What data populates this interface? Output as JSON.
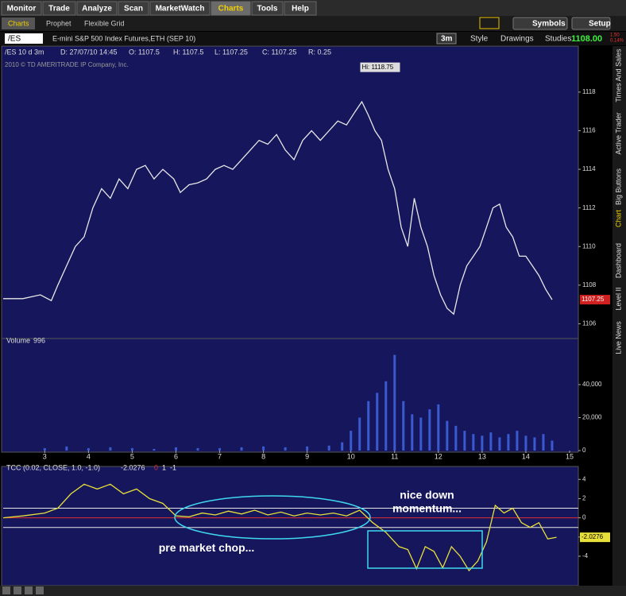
{
  "tabs": [
    "Monitor",
    "Trade",
    "Analyze",
    "Scan",
    "MarketWatch",
    "Charts",
    "Tools",
    "Help"
  ],
  "subtabs": [
    "Charts",
    "Prophet",
    "Flexible Grid"
  ],
  "toolbar": {
    "symbol": "/ES",
    "description": "E-mini S&P 500 Index Futures,ETH (SEP 10)",
    "period": "3m",
    "style": "Style",
    "drawings": "Drawings",
    "studies": "Studies",
    "last": "1108.00",
    "change": "1.50",
    "change_pct": "0.14%",
    "symbols": "Symbols",
    "setup": "Setup"
  },
  "info": [
    "/ES 10 d 3m",
    "D: 27/07/10 14:45",
    "O: 1107.5",
    "H: 1107.5",
    "L: 1107.25",
    "C: 1107.25",
    "R: 0.25"
  ],
  "copyright": "2010 © TD AMERITRADE IP Company, Inc.",
  "side_tabs": [
    "Times And Sales",
    "Active Trader",
    "Big Buttons",
    "Chart",
    "Dashboard",
    "Level II",
    "Live News"
  ],
  "chart_data": [
    {
      "type": "line",
      "xlim": [
        2.05,
        15.2
      ],
      "ylim": [
        1105.4,
        1119.6
      ],
      "yticks": [
        1106,
        1108,
        1110,
        1112,
        1114,
        1116,
        1118
      ],
      "current": 1107.25,
      "x": [
        2.05,
        2.5,
        2.9,
        3.15,
        3.3,
        3.5,
        3.7,
        3.9,
        4.1,
        4.3,
        4.5,
        4.7,
        4.9,
        5.1,
        5.3,
        5.5,
        5.7,
        5.95,
        6.1,
        6.3,
        6.5,
        6.7,
        6.9,
        7.1,
        7.3,
        7.5,
        7.7,
        7.9,
        8.1,
        8.3,
        8.5,
        8.7,
        8.9,
        9.1,
        9.3,
        9.5,
        9.7,
        9.9,
        10.1,
        10.25,
        10.4,
        10.55,
        10.7,
        10.85,
        11.0,
        11.15,
        11.3,
        11.45,
        11.6,
        11.75,
        11.9,
        12.05,
        12.2,
        12.35,
        12.5,
        12.65,
        12.8,
        12.95,
        13.1,
        13.25,
        13.4,
        13.55,
        13.7,
        13.85,
        14.0,
        14.15,
        14.3,
        14.45,
        14.6
      ],
      "series": [
        {
          "name": "/ES",
          "color": "#e8e8e8",
          "values": [
            1107.3,
            1107.3,
            1107.5,
            1107.2,
            1108.0,
            1109.0,
            1110.0,
            1110.5,
            1112.0,
            1113.0,
            1112.5,
            1113.5,
            1113.0,
            1114.0,
            1114.2,
            1113.5,
            1114.0,
            1113.5,
            1112.8,
            1113.2,
            1113.3,
            1113.5,
            1114.0,
            1114.2,
            1114.0,
            1114.5,
            1115.0,
            1115.5,
            1115.3,
            1115.8,
            1115.0,
            1114.5,
            1115.5,
            1116.0,
            1115.5,
            1116.0,
            1116.5,
            1116.3,
            1117.0,
            1117.5,
            1116.8,
            1116.0,
            1115.5,
            1114.0,
            1113.0,
            1111.0,
            1110.0,
            1112.5,
            1111.0,
            1110.0,
            1108.5,
            1107.5,
            1106.8,
            1106.5,
            1108.0,
            1109.0,
            1109.5,
            1110.0,
            1111.0,
            1112.0,
            1112.2,
            1111.0,
            1110.5,
            1109.5,
            1109.5,
            1109.0,
            1108.5,
            1107.8,
            1107.25
          ]
        }
      ],
      "annotations": [
        {
          "text": "Hi: 1118.75",
          "x": 10.25,
          "y": 1118.75
        }
      ]
    },
    {
      "type": "bar",
      "title": "Volume",
      "current": 996,
      "xlim": [
        2.05,
        15.2
      ],
      "ylim": [
        0,
        66000
      ],
      "yticks": [
        0,
        {
          "value": 20000,
          "label": "20,000"
        },
        {
          "value": 40000,
          "label": "40,000"
        }
      ],
      "xticks": [
        3,
        4,
        5,
        6,
        7,
        8,
        9,
        10,
        11,
        12,
        13,
        14,
        15
      ],
      "x": [
        3.0,
        3.5,
        4.0,
        4.5,
        5.0,
        5.5,
        6.0,
        6.5,
        7.0,
        7.5,
        8.0,
        8.5,
        9.0,
        9.5,
        9.8,
        10.0,
        10.2,
        10.4,
        10.6,
        10.8,
        11.0,
        11.2,
        11.4,
        11.6,
        11.8,
        12.0,
        12.2,
        12.4,
        12.6,
        12.8,
        13.0,
        13.2,
        13.4,
        13.6,
        13.8,
        14.0,
        14.2,
        14.4,
        14.6
      ],
      "series": [
        {
          "name": "Volume",
          "color": "#3a5bd0",
          "values": [
            1500,
            2500,
            1500,
            2000,
            1500,
            1000,
            2000,
            1500,
            1500,
            2000,
            2500,
            2000,
            2500,
            3000,
            5000,
            12000,
            20000,
            30000,
            35000,
            42000,
            58000,
            30000,
            22000,
            20000,
            25000,
            28000,
            18000,
            15000,
            12000,
            10000,
            9000,
            11000,
            8000,
            10000,
            12000,
            9000,
            8000,
            10000,
            6000
          ]
        }
      ]
    },
    {
      "type": "line",
      "title": "TCC (0.02, CLOSE, 1.0, -1.0)",
      "current": -2.0276,
      "xlim": [
        2.05,
        15.2
      ],
      "ylim": [
        -6.9,
        5.1
      ],
      "yticks": [
        -4,
        -2,
        0,
        2,
        4
      ],
      "levels": [
        {
          "value": 0,
          "color": "#e03030"
        },
        {
          "value": 1,
          "color": "#e8e8e8"
        },
        {
          "value": -1,
          "color": "#e8e8e8"
        }
      ],
      "x": [
        2.05,
        2.5,
        3.0,
        3.3,
        3.6,
        3.9,
        4.2,
        4.5,
        4.8,
        5.1,
        5.4,
        5.7,
        6.0,
        6.3,
        6.6,
        6.9,
        7.2,
        7.5,
        7.8,
        8.1,
        8.4,
        8.7,
        9.0,
        9.3,
        9.6,
        9.9,
        10.2,
        10.5,
        10.8,
        11.1,
        11.3,
        11.5,
        11.7,
        11.9,
        12.1,
        12.3,
        12.5,
        12.7,
        12.9,
        13.1,
        13.3,
        13.5,
        13.7,
        13.9,
        14.1,
        14.3,
        14.5,
        14.7
      ],
      "series": [
        {
          "name": "TCC",
          "color": "#e8e03a",
          "values": [
            0,
            0.2,
            0.5,
            1.0,
            2.5,
            3.5,
            3.0,
            3.5,
            2.5,
            3.0,
            2.0,
            1.5,
            0.2,
            0.1,
            0.5,
            0.3,
            0.7,
            0.4,
            0.8,
            0.3,
            0.6,
            0.2,
            0.5,
            0.3,
            0.5,
            0.2,
            0.8,
            -0.5,
            -1.5,
            -3.0,
            -3.3,
            -5.3,
            -3.0,
            -3.5,
            -5.2,
            -3.0,
            -4.0,
            -5.5,
            -4.5,
            -2.5,
            1.3,
            0.5,
            1.0,
            -0.5,
            -1.0,
            -0.5,
            -2.2,
            -2.0276
          ]
        }
      ],
      "annotations": [
        {
          "text": "nice down",
          "x": 11.74,
          "y": 2.3
        },
        {
          "text": "momentum...",
          "x": 11.74,
          "y": 0.9
        },
        {
          "text": "pre market chop...",
          "x": 6.7,
          "y": -3.2
        }
      ]
    }
  ]
}
